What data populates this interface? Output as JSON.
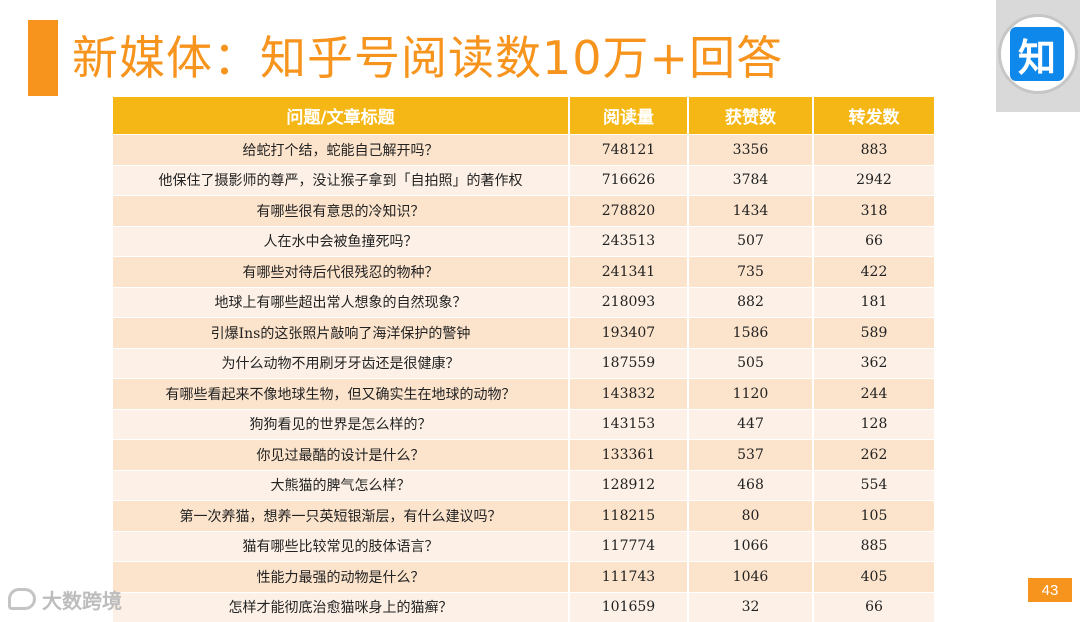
{
  "title": "新媒体：知乎号阅读数10万+回答",
  "logo": {
    "text": "知",
    "color": "#0f88eb"
  },
  "accent_color": "#f7941d",
  "table": {
    "headers": [
      "问题/文章标题",
      "阅读量",
      "获赞数",
      "转发数"
    ],
    "rows": [
      [
        "给蛇打个结，蛇能自己解开吗？",
        "748121",
        "3356",
        "883"
      ],
      [
        "他保住了摄影师的尊严，没让猴子拿到「自拍照」的著作权",
        "716626",
        "3784",
        "2942"
      ],
      [
        "有哪些很有意思的冷知识？",
        "278820",
        "1434",
        "318"
      ],
      [
        "人在水中会被鱼撞死吗？",
        "243513",
        "507",
        "66"
      ],
      [
        "有哪些对待后代很残忍的物种？",
        "241341",
        "735",
        "422"
      ],
      [
        "地球上有哪些超出常人想象的自然现象？",
        "218093",
        "882",
        "181"
      ],
      [
        "引爆Ins的这张照片敲响了海洋保护的警钟",
        "193407",
        "1586",
        "589"
      ],
      [
        "为什么动物不用刷牙牙齿还是很健康？",
        "187559",
        "505",
        "362"
      ],
      [
        "有哪些看起来不像地球生物，但又确实生在地球的动物？",
        "143832",
        "1120",
        "244"
      ],
      [
        "狗狗看见的世界是怎么样的？",
        "143153",
        "447",
        "128"
      ],
      [
        "你见过最酷的设计是什么？",
        "133361",
        "537",
        "262"
      ],
      [
        "大熊猫的脾气怎么样？",
        "128912",
        "468",
        "554"
      ],
      [
        "第一次养猫，想养一只英短银渐层，有什么建议吗？",
        "118215",
        "80",
        "105"
      ],
      [
        "猫有哪些比较常见的肢体语言？",
        "117774",
        "1066",
        "885"
      ],
      [
        "性能力最强的动物是什么？",
        "111743",
        "1046",
        "405"
      ],
      [
        "怎样才能彻底治愈猫咪身上的猫癣？",
        "101659",
        "32",
        "66"
      ]
    ]
  },
  "watermark": "大数跨境",
  "page_number": "43"
}
